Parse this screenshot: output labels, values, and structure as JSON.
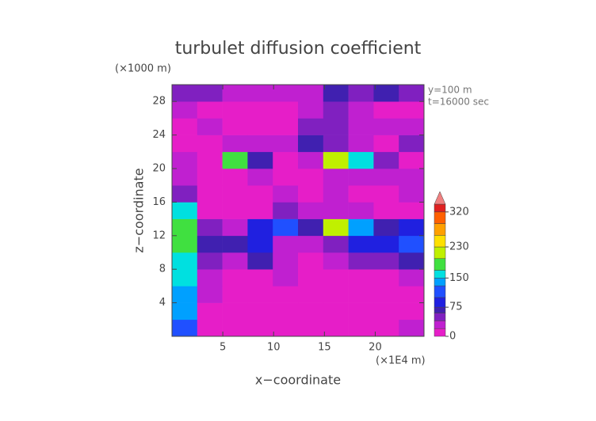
{
  "chart_data": {
    "type": "heatmap",
    "title": "turbulet diffusion coefficient",
    "y_unit": "(×1000 m)",
    "x_unit": "(×1E4 m)",
    "annotations": [
      "y=100 m",
      "t=16000 sec"
    ],
    "xlabel": "x−coordinate",
    "ylabel": "z−coordinate",
    "xlim": [
      0,
      24.8
    ],
    "ylim": [
      0,
      30
    ],
    "xticks": [
      5,
      10,
      15,
      20
    ],
    "yticks": [
      4,
      8,
      12,
      16,
      20,
      24,
      28
    ],
    "x_bins": [
      0,
      2.48,
      4.96,
      7.44,
      9.92,
      12.4,
      14.88,
      17.36,
      19.84,
      22.32,
      24.8
    ],
    "z_bins": [
      0,
      2,
      4,
      6,
      8,
      10,
      12,
      14,
      16,
      18,
      20,
      22,
      24,
      26,
      28,
      30
    ],
    "values": [
      [
        110,
        15,
        10,
        10,
        10,
        10,
        10,
        10,
        15,
        30
      ],
      [
        130,
        15,
        10,
        10,
        10,
        10,
        10,
        10,
        10,
        15
      ],
      [
        140,
        20,
        10,
        10,
        10,
        10,
        10,
        10,
        10,
        10
      ],
      [
        150,
        25,
        15,
        15,
        20,
        10,
        10,
        15,
        15,
        20
      ],
      [
        160,
        40,
        30,
        60,
        20,
        15,
        20,
        40,
        40,
        70
      ],
      [
        170,
        70,
        60,
        90,
        30,
        20,
        40,
        90,
        80,
        100
      ],
      [
        180,
        40,
        30,
        80,
        120,
        60,
        200,
        140,
        60,
        80
      ],
      [
        150,
        15,
        10,
        15,
        40,
        20,
        30,
        20,
        10,
        15
      ],
      [
        40,
        10,
        10,
        15,
        20,
        15,
        20,
        15,
        10,
        20
      ],
      [
        30,
        10,
        10,
        20,
        15,
        10,
        20,
        30,
        20,
        30
      ],
      [
        20,
        15,
        180,
        60,
        15,
        20,
        210,
        150,
        40,
        15
      ],
      [
        15,
        10,
        30,
        20,
        30,
        60,
        40,
        20,
        15,
        40
      ],
      [
        15,
        20,
        15,
        15,
        15,
        40,
        50,
        20,
        20,
        30
      ],
      [
        20,
        15,
        10,
        10,
        10,
        30,
        40,
        20,
        15,
        15
      ],
      [
        40,
        40,
        20,
        30,
        20,
        30,
        60,
        50,
        60,
        40
      ]
    ],
    "colorbar": {
      "lim": [
        0,
        340
      ],
      "ticks": [
        0,
        75,
        150,
        230,
        320
      ],
      "levels": [
        0,
        20,
        40,
        60,
        75,
        100,
        130,
        150,
        170,
        200,
        230,
        260,
        290,
        320,
        340
      ],
      "colors": [
        "#e61ec8",
        "#c020d0",
        "#8020c0",
        "#4020b0",
        "#2020e0",
        "#2050ff",
        "#00a0ff",
        "#00e0e0",
        "#40e040",
        "#c0f000",
        "#ffe000",
        "#ffa000",
        "#ff6000",
        "#e02020"
      ]
    }
  }
}
